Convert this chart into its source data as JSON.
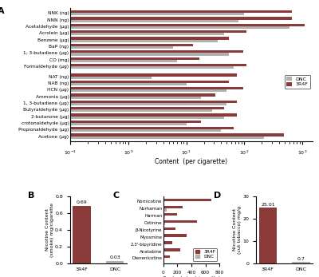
{
  "panel_A": {
    "categories": [
      "NNK (ng)",
      "NNN (ng)",
      "Acetaldehyde (μg)",
      "Acrolein (μg)",
      "Benzene (μg)",
      "BaP (ng)",
      "1, 3-butadiene (μg)",
      "CO (mg)",
      "Formaldehyde (μg)",
      "",
      "NAT (ng)",
      "NAB (ng)",
      "HCN (μg)",
      "Ammonia (μg)",
      "1, 3-butadiene (μg)",
      "Butyraldehyde (μg)",
      "2-butanone (μg)",
      "crotonaldehyde (μg)",
      "Propionaldehyde (μg)",
      "Acetone (μg)"
    ],
    "DNC": [
      100,
      80,
      600,
      45,
      35,
      6,
      55,
      7,
      65,
      0,
      2.5,
      10,
      50,
      18,
      50,
      28,
      45,
      10,
      40,
      220
    ],
    "3R4F": [
      650,
      650,
      1100,
      110,
      55,
      13,
      95,
      17,
      110,
      0,
      75,
      55,
      95,
      32,
      75,
      45,
      75,
      18,
      65,
      480
    ],
    "xlabel": "Content  (per cigarette)",
    "xlim": [
      0.1,
      1500
    ],
    "color_DNC": "#b0b0b0",
    "color_3R4F": "#8B3A3A"
  },
  "panel_B": {
    "categories": [
      "3R4F",
      "DNC"
    ],
    "values": [
      0.69,
      0.03
    ],
    "color_3R4F": "#8B3A3A",
    "color_DNC": "#b0b0b0",
    "ylabel": "Nicotine Content\n(smoke) mg/cigarette",
    "ylim": [
      0,
      0.8
    ],
    "yticks": [
      0,
      0.2,
      0.4,
      0.6,
      0.8
    ]
  },
  "panel_C": {
    "categories": [
      "Nornicotine",
      "Norhaman",
      "Harman",
      "Cotinine",
      "β-Nicotyrine",
      "Myosmine",
      "2,3'-bipyridine",
      "Anatabine",
      "Dienenicotine"
    ],
    "3R4F": [
      680,
      280,
      200,
      480,
      175,
      330,
      130,
      240,
      90
    ],
    "DNC": [
      18,
      50,
      28,
      22,
      8,
      12,
      8,
      18,
      8
    ],
    "xlabel": "Content  (ug/cigarette)",
    "xlim": [
      0,
      800
    ],
    "color_3R4F": "#8B3A3A",
    "color_DNC": "#b0b0b0"
  },
  "panel_D": {
    "categories": [
      "3R4F",
      "DNC"
    ],
    "values": [
      25.01,
      0.7
    ],
    "color_3R4F": "#8B3A3A",
    "color_DNC": "#b0b0b0",
    "ylabel": "Nicotine Content\n(cut tobacco) mg/g",
    "ylim": [
      0,
      30
    ],
    "yticks": [
      0,
      10,
      20,
      30
    ]
  }
}
